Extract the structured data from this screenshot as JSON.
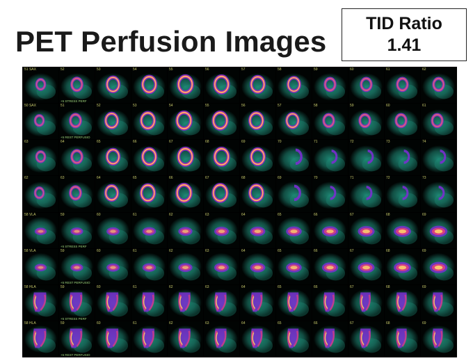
{
  "title": "PET Perfusion Images",
  "tid": {
    "label": "TID Ratio",
    "value": "1.41"
  },
  "colors": {
    "background": "#000000",
    "tissue": "#1f8b78",
    "uptake_low": "#7a2ed0",
    "uptake_mid": "#e2407a",
    "uptake_high": "#ffd36a"
  },
  "rows": [
    {
      "view": "SAX",
      "state": "stress",
      "shape": "ring",
      "labels": [
        "51 SAX",
        "52",
        "53",
        "54",
        "55",
        "56",
        "57",
        "58",
        "59",
        "60",
        "61",
        "62"
      ],
      "sublabel": "+5 STRESS PERF"
    },
    {
      "view": "SAX",
      "state": "rest",
      "shape": "ring",
      "labels": [
        "50 SAX",
        "51",
        "52",
        "53",
        "54",
        "55",
        "56",
        "57",
        "58",
        "59",
        "60",
        "61"
      ],
      "sublabel": "+5 REST PERFUSIO"
    },
    {
      "view": "SAX",
      "state": "stress",
      "shape": "ring",
      "labels": [
        "63",
        "64",
        "65",
        "66",
        "67",
        "68",
        "69",
        "70",
        "71",
        "72",
        "73",
        "74"
      ],
      "sublabel": ""
    },
    {
      "view": "SAX",
      "state": "rest",
      "shape": "ring",
      "labels": [
        "62",
        "63",
        "64",
        "65",
        "66",
        "67",
        "68",
        "69",
        "70",
        "71",
        "72",
        "73"
      ],
      "sublabel": ""
    },
    {
      "view": "VLA",
      "state": "stress",
      "shape": "vla",
      "labels": [
        "58 VLA",
        "59",
        "60",
        "61",
        "62",
        "63",
        "64",
        "65",
        "66",
        "67",
        "68",
        "69"
      ],
      "sublabel": "+5 STRESS PERF"
    },
    {
      "view": "VLA",
      "state": "rest",
      "shape": "vla",
      "labels": [
        "58 VLA",
        "59",
        "60",
        "61",
        "62",
        "63",
        "64",
        "65",
        "66",
        "67",
        "68",
        "69"
      ],
      "sublabel": "+5 REST PERFUSIO"
    },
    {
      "view": "HLA",
      "state": "stress",
      "shape": "hla",
      "labels": [
        "58 HLA",
        "59",
        "60",
        "61",
        "62",
        "63",
        "64",
        "65",
        "66",
        "67",
        "68",
        "69"
      ],
      "sublabel": "+5 STRESS PERF"
    },
    {
      "view": "HLA",
      "state": "rest",
      "shape": "hla",
      "labels": [
        "58 HLA",
        "59",
        "60",
        "61",
        "62",
        "63",
        "64",
        "65",
        "66",
        "67",
        "68",
        "69"
      ],
      "sublabel": "+5 REST PERFUSIO"
    }
  ]
}
